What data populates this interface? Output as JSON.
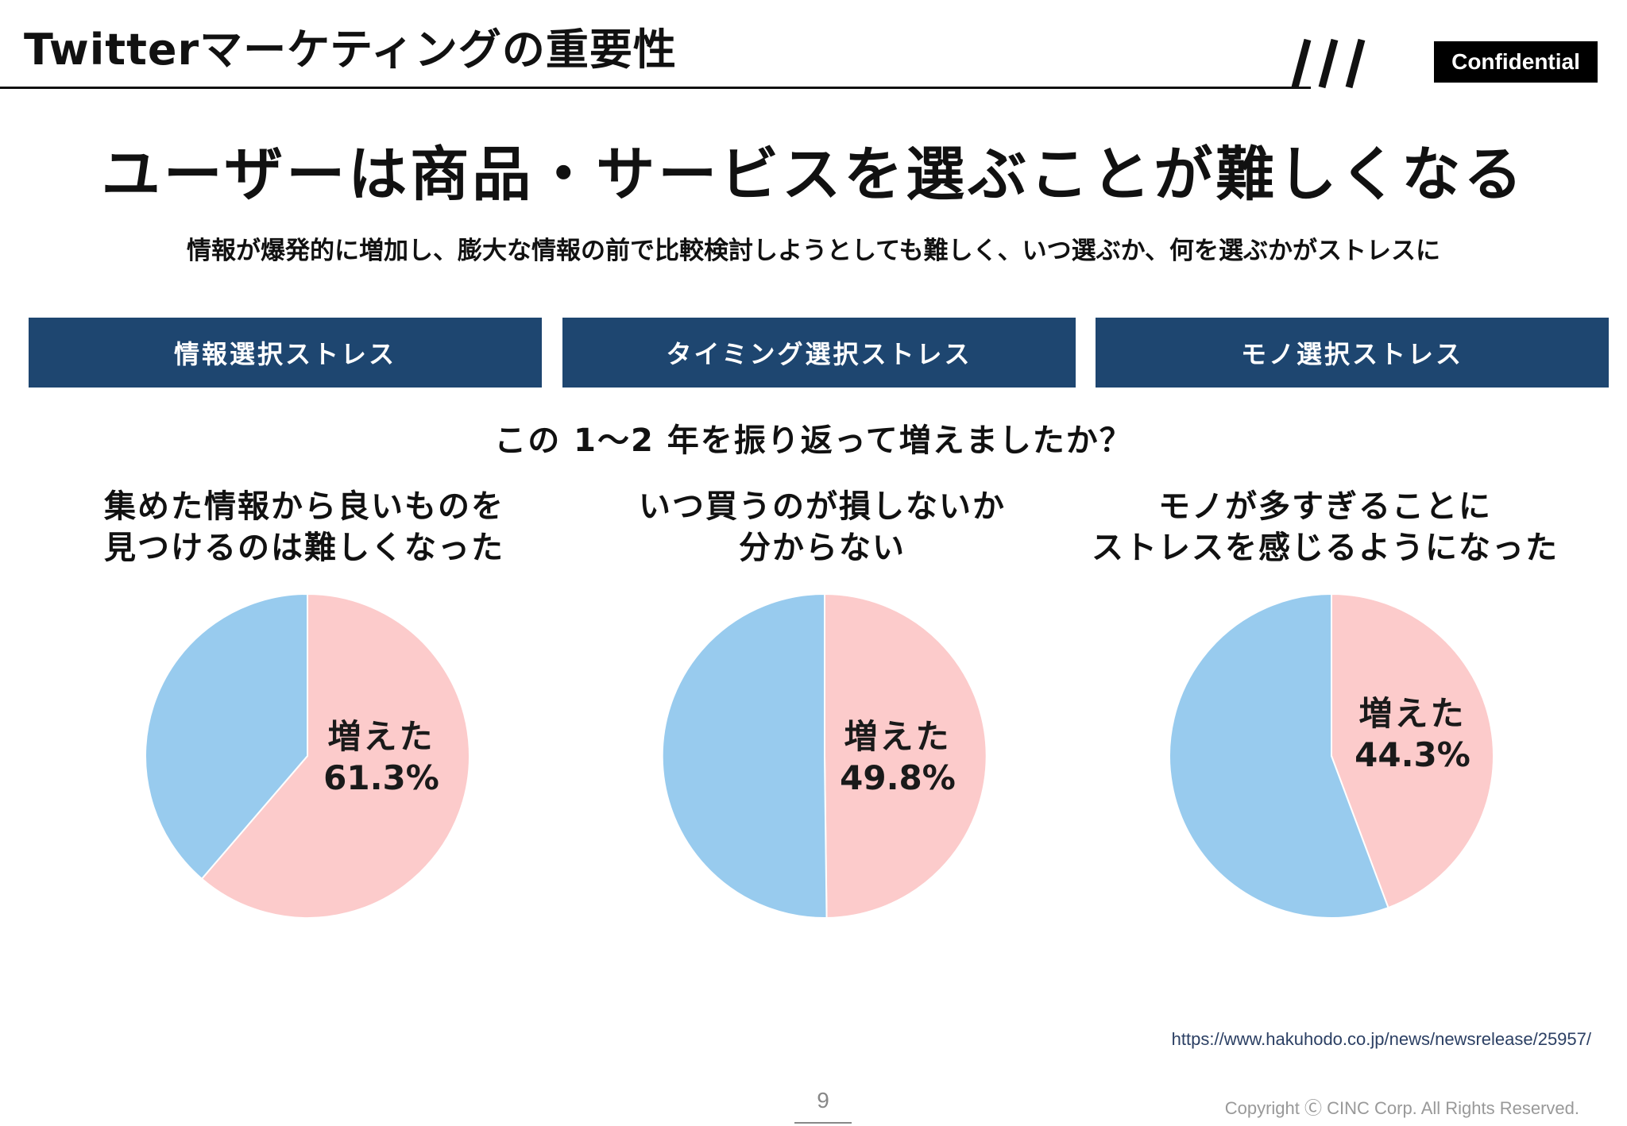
{
  "header": {
    "title": "Twitterマーケティングの重要性",
    "confidential": "Confidential"
  },
  "main_title": "ユーザーは商品・サービスを選ぶことが難しくなる",
  "subtitle": "情報が爆発的に増加し、膨大な情報の前で比較検討しようとしても難しく、いつ選ぶか、何を選ぶかがストレスに",
  "categories": [
    "情報選択ストレス",
    "タイミング選択ストレス",
    "モノ選択ストレス"
  ],
  "question": "この 1〜2 年を振り返って増えましたか？",
  "colors": {
    "increased": "#fccbcb",
    "other": "#98cbee",
    "category_bg": "#1e4670"
  },
  "chart_data": [
    {
      "type": "pie",
      "title_lines": [
        "集めた情報から良いものを",
        "見つけるのは難しくなった"
      ],
      "slices": [
        {
          "label": "増えた",
          "value": 61.3,
          "color": "#fccbcb"
        },
        {
          "label": "",
          "value": 38.7,
          "color": "#98cbee"
        }
      ],
      "data_label": {
        "label": "増えた",
        "value": "61.3%"
      }
    },
    {
      "type": "pie",
      "title_lines": [
        "いつ買うのが損しないか",
        "分からない"
      ],
      "slices": [
        {
          "label": "増えた",
          "value": 49.8,
          "color": "#fccbcb"
        },
        {
          "label": "",
          "value": 50.2,
          "color": "#98cbee"
        }
      ],
      "data_label": {
        "label": "増えた",
        "value": "49.8%"
      }
    },
    {
      "type": "pie",
      "title_lines": [
        "モノが多すぎることに",
        "ストレスを感じるようになった"
      ],
      "slices": [
        {
          "label": "増えた",
          "value": 44.3,
          "color": "#fccbcb"
        },
        {
          "label": "",
          "value": 55.7,
          "color": "#98cbee"
        }
      ],
      "data_label": {
        "label": "増えた",
        "value": "44.3%"
      }
    }
  ],
  "source": "https://www.hakuhodo.co.jp/news/newsrelease/25957/",
  "page_number": "9",
  "copyright": "Copyright Ⓒ CINC Corp. All Rights Reserved."
}
